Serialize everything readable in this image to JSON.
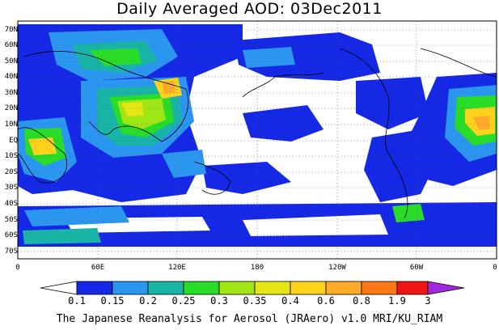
{
  "title": "Daily Averaged AOD: 03Dec2011",
  "footer": "The Japanese Reanalysis for Aerosol (JRAero) v1.0 MRI/KU_RIAM",
  "lat_labels": [
    "70N",
    "60N",
    "50N",
    "40N",
    "30N",
    "20N",
    "10N",
    "EQ",
    "10S",
    "20S",
    "30S",
    "40S",
    "50S",
    "60S",
    "70S"
  ],
  "lon_labels": [
    "0",
    "60E",
    "120E",
    "180",
    "120W",
    "60W",
    "0"
  ],
  "colorbar": {
    "labels": [
      "0.1",
      "0.15",
      "0.2",
      "0.25",
      "0.3",
      "0.35",
      "0.4",
      "0.6",
      "0.8",
      "1.9",
      "3"
    ],
    "colors": [
      "#1428e6",
      "#2b96f0",
      "#18b4a8",
      "#28dc28",
      "#a0e614",
      "#e6e614",
      "#ffd21e",
      "#ffaa28",
      "#ff7818",
      "#f01414",
      "#a028dc"
    ]
  },
  "map": {
    "lon_range": [
      0,
      360
    ],
    "lat_range": [
      -75,
      75
    ],
    "palette": {
      "low": "#1428e6",
      "mid1": "#2b96f0",
      "mid2": "#18b4a8",
      "mid3": "#28dc28",
      "mid4": "#a0e614",
      "mid5": "#e6e614",
      "high1": "#ffd21e",
      "high2": "#ffaa28"
    }
  }
}
